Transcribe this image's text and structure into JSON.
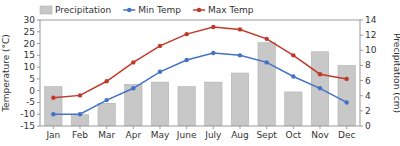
{
  "chart_data": {
    "type": "bar",
    "categories": [
      "Jan",
      "Feb",
      "Mar",
      "Apr",
      "May",
      "June",
      "July",
      "Aug",
      "Sept",
      "Oct",
      "Nov",
      "Dec"
    ],
    "series": [
      {
        "name": "Precipitation",
        "type": "bar",
        "axis": "y2",
        "color": "#c8c8c8",
        "values": [
          5.2,
          1.5,
          3.0,
          5.5,
          5.8,
          5.2,
          5.8,
          7.0,
          11.0,
          4.5,
          9.8,
          8.0
        ]
      },
      {
        "name": "Min Temp",
        "type": "line",
        "color": "#4472c4",
        "marker": "circle",
        "values": [
          -10,
          -10,
          -4,
          1,
          8,
          13,
          16,
          15,
          12,
          6,
          1,
          -5
        ]
      },
      {
        "name": "Max Temp",
        "type": "line",
        "color": "#c0392b",
        "marker": "circle",
        "values": [
          -3,
          -2,
          4,
          12,
          19,
          24,
          27,
          26,
          22,
          15,
          7,
          5
        ]
      }
    ],
    "y_label": "Temperature (°C)",
    "y2_label": "Precipitation (cm)",
    "ylim": [
      -15,
      30
    ],
    "yticks": [
      -15,
      -10,
      -5,
      0,
      5,
      10,
      15,
      20,
      25,
      30
    ],
    "y2lim": [
      0,
      14
    ],
    "y2ticks": [
      0,
      2,
      4,
      6,
      8,
      10,
      12,
      14
    ],
    "grid": false,
    "legend": "top"
  }
}
